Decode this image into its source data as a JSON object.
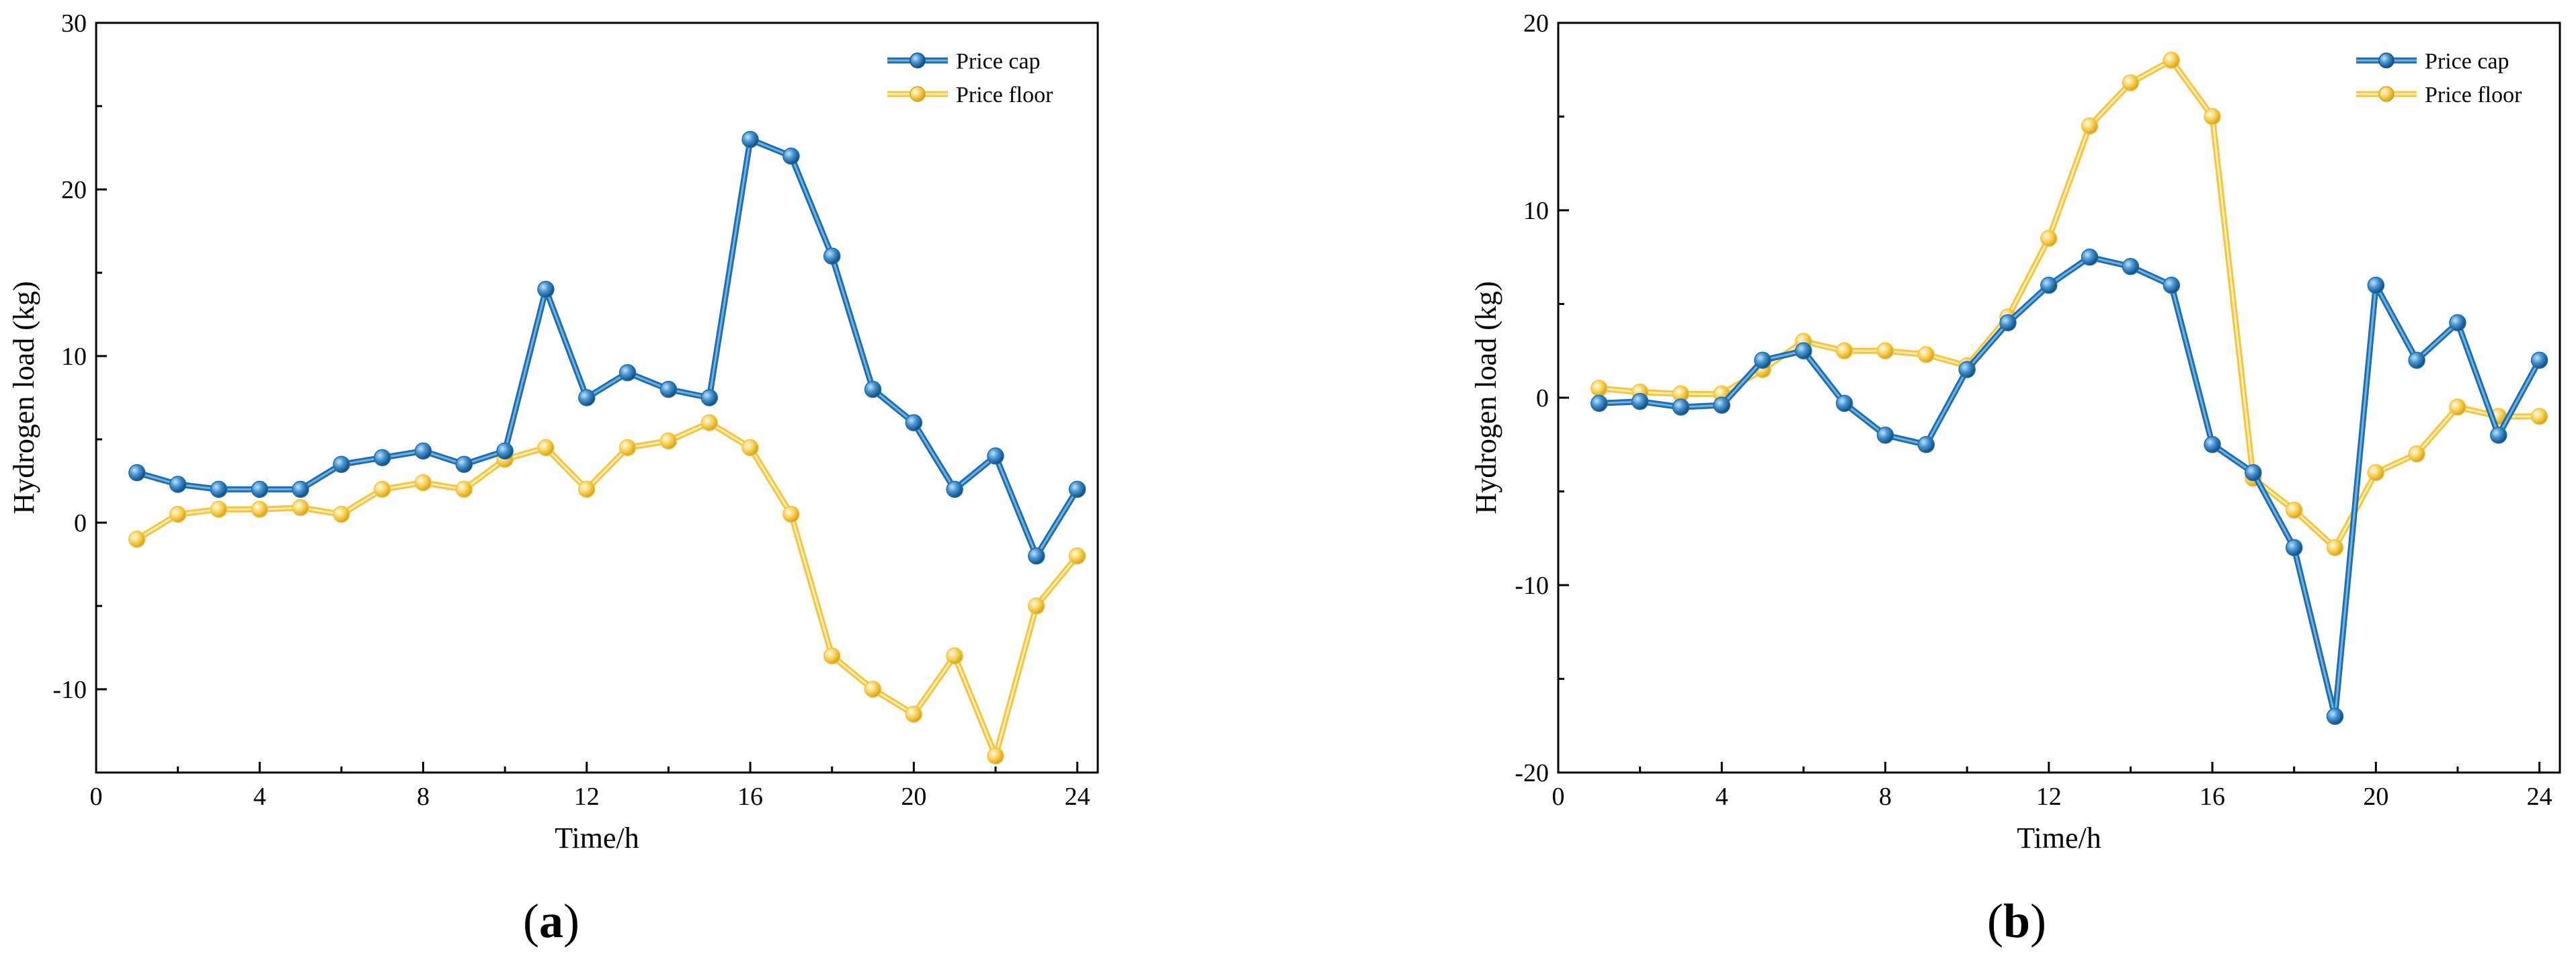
{
  "figure": {
    "panel_labels": [
      {
        "prefix": "(",
        "letter": "a",
        "suffix": ")"
      },
      {
        "prefix": "(",
        "letter": "b",
        "suffix": ")"
      }
    ]
  },
  "colors": {
    "price_cap": "#1f6fad",
    "price_cap_light": "#6fb3e6",
    "price_floor": "#f5c542",
    "price_floor_light": "#fff0b0"
  },
  "chart_data": [
    {
      "type": "line",
      "panel": "a",
      "xlabel": "Time/h",
      "ylabel": "Hydrogen load (kg)",
      "xlim": [
        0,
        24.5
      ],
      "ylim": [
        -15,
        30
      ],
      "xticks": [
        0,
        4,
        8,
        12,
        16,
        20,
        24
      ],
      "yticks": [
        -10,
        0,
        10,
        20,
        30
      ],
      "legend_position": "top-right",
      "x": [
        1,
        2,
        3,
        4,
        5,
        6,
        7,
        8,
        9,
        10,
        11,
        12,
        13,
        14,
        15,
        16,
        17,
        18,
        19,
        20,
        21,
        22,
        23,
        24
      ],
      "series": [
        {
          "name": "Price cap",
          "values": [
            3,
            2.3,
            2,
            2,
            2,
            3.5,
            3.9,
            4.3,
            3.5,
            4.3,
            14,
            7.5,
            9,
            8,
            7.5,
            23,
            22,
            16,
            8,
            6,
            2,
            4,
            -2,
            2
          ]
        },
        {
          "name": "Price floor",
          "values": [
            -1,
            0.5,
            0.8,
            0.8,
            0.9,
            0.5,
            2,
            2.4,
            2,
            3.8,
            4.5,
            2,
            4.5,
            4.9,
            6,
            4.5,
            0.5,
            -8,
            -10,
            -11.5,
            -8,
            -14,
            -5,
            -2
          ]
        }
      ]
    },
    {
      "type": "line",
      "panel": "b",
      "xlabel": "Time/h",
      "ylabel": "Hydrogen load (kg)",
      "xlim": [
        0,
        24.5
      ],
      "ylim": [
        -20,
        20
      ],
      "xticks": [
        0,
        4,
        8,
        12,
        16,
        20,
        24
      ],
      "yticks": [
        -20,
        -10,
        0,
        10,
        20
      ],
      "legend_position": "top-right",
      "x": [
        1,
        2,
        3,
        4,
        5,
        6,
        7,
        8,
        9,
        10,
        11,
        12,
        13,
        14,
        15,
        16,
        17,
        18,
        19,
        20,
        21,
        22,
        23,
        24
      ],
      "series": [
        {
          "name": "Price cap",
          "values": [
            -0.3,
            -0.2,
            -0.5,
            -0.4,
            2,
            2.5,
            -0.3,
            -2,
            -2.5,
            1.5,
            4,
            6,
            7.5,
            7,
            6,
            -2.5,
            -4,
            -8,
            -17,
            6,
            2,
            4,
            -2,
            2
          ]
        },
        {
          "name": "Price floor",
          "values": [
            0.5,
            0.3,
            0.2,
            0.2,
            1.5,
            3,
            2.5,
            2.5,
            2.3,
            1.7,
            4.3,
            8.5,
            14.5,
            16.8,
            18,
            15,
            -4.3,
            -6,
            -8,
            -4,
            -3,
            -0.5,
            -1,
            -1
          ]
        }
      ]
    }
  ]
}
